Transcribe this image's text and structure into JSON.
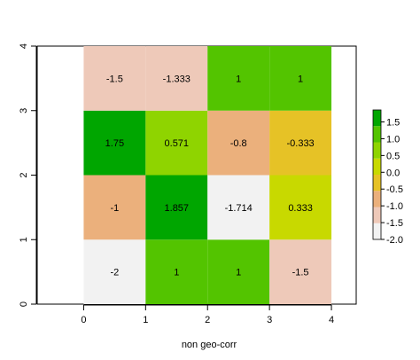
{
  "chart_data": {
    "type": "heatmap",
    "title": "",
    "xlabel": "non geo-corr",
    "ylabel": "",
    "xlim": [
      -0.75,
      4.4
    ],
    "ylim": [
      0,
      4
    ],
    "x_ticks": [
      0,
      1,
      2,
      3,
      4
    ],
    "y_ticks": [
      0,
      1,
      2,
      3,
      4
    ],
    "x_tick_labels": [
      "0",
      "1",
      "2",
      "3",
      "4"
    ],
    "y_tick_labels": [
      "0",
      "1",
      "2",
      "3",
      "4"
    ],
    "grid": false,
    "legend": "right",
    "cells": [
      {
        "row": 0,
        "col": 0,
        "value": -2,
        "label": "-2"
      },
      {
        "row": 0,
        "col": 1,
        "value": 1,
        "label": "1"
      },
      {
        "row": 0,
        "col": 2,
        "value": 1,
        "label": "1"
      },
      {
        "row": 0,
        "col": 3,
        "value": -1.5,
        "label": "-1.5"
      },
      {
        "row": 1,
        "col": 0,
        "value": -1,
        "label": "-1"
      },
      {
        "row": 1,
        "col": 1,
        "value": 1.857,
        "label": "1.857"
      },
      {
        "row": 1,
        "col": 2,
        "value": -1.714,
        "label": "-1.714"
      },
      {
        "row": 1,
        "col": 3,
        "value": 0.333,
        "label": "0.333"
      },
      {
        "row": 2,
        "col": 0,
        "value": 1.75,
        "label": "1.75"
      },
      {
        "row": 2,
        "col": 1,
        "value": 0.571,
        "label": "0.571"
      },
      {
        "row": 2,
        "col": 2,
        "value": -0.8,
        "label": "-0.8"
      },
      {
        "row": 2,
        "col": 3,
        "value": -0.333,
        "label": "-0.333"
      },
      {
        "row": 3,
        "col": 0,
        "value": -1.5,
        "label": "-1.5"
      },
      {
        "row": 3,
        "col": 1,
        "value": -1.333,
        "label": "-1.333"
      },
      {
        "row": 3,
        "col": 2,
        "value": 1,
        "label": "1"
      },
      {
        "row": 3,
        "col": 3,
        "value": 1,
        "label": "1"
      }
    ],
    "colorbar": {
      "min": -2,
      "max": 1.857,
      "ticks": [
        1.5,
        1.0,
        0.5,
        0.0,
        -0.5,
        -1.0,
        -1.5,
        -2.0
      ],
      "tick_labels": [
        "1.5",
        "1.0",
        "0.5",
        "0.0",
        "-0.5",
        "-1.0",
        "-1.5",
        "-2.0"
      ],
      "colors": [
        "#f2f2f2",
        "#eec9b9",
        "#ebb07c",
        "#e6c226",
        "#c8d900",
        "#8fd400",
        "#53c400",
        "#00a600"
      ]
    }
  }
}
